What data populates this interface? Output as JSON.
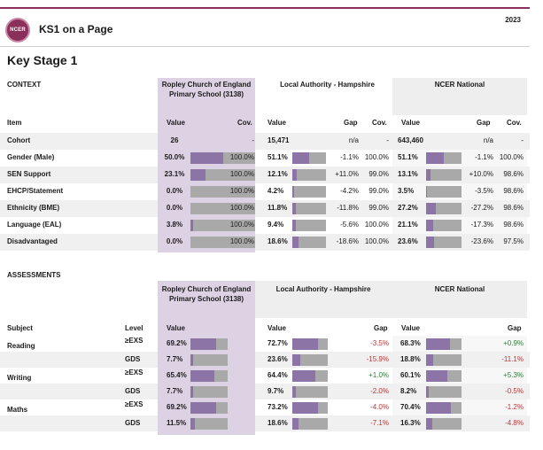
{
  "header": {
    "logo_text": "NCER",
    "title": "KS1 on a Page",
    "year": "2023"
  },
  "page_title": "Key Stage 1",
  "colors": {
    "accent": "#8b2f5b",
    "school_band": "#ddd2e3",
    "bar_fill": "#8c74a6",
    "bar_track": "#a9a9a9"
  },
  "context": {
    "section_label": "CONTEXT",
    "school_name": "Ropley Church of England Primary School (3138)",
    "la_name": "Local Authority - Hampshire",
    "national_name": "NCER National",
    "headers": {
      "item": "Item",
      "value": "Value",
      "cov": "Cov.",
      "gap": "Gap"
    },
    "rows": [
      {
        "item": "Cohort",
        "s_val": "26",
        "s_cov": "-",
        "la_val": "15,471",
        "la_gap": "n/a",
        "la_cov": "-",
        "n_val": "643,460",
        "n_gap": "n/a",
        "n_cov": "-",
        "s_pct": null,
        "la_pct": null,
        "n_pct": null
      },
      {
        "item": "Gender (Male)",
        "s_val": "50.0%",
        "s_cov": "100.0%",
        "la_val": "51.1%",
        "la_gap": "-1.1%",
        "la_cov": "100.0%",
        "n_val": "51.1%",
        "n_gap": "-1.1%",
        "n_cov": "100.0%",
        "s_pct": 50.0,
        "la_pct": 51.1,
        "n_pct": 51.1
      },
      {
        "item": "SEN Support",
        "s_val": "23.1%",
        "s_cov": "100.0%",
        "la_val": "12.1%",
        "la_gap": "+11.0%",
        "la_cov": "99.0%",
        "n_val": "13.1%",
        "n_gap": "+10.0%",
        "n_cov": "98.6%",
        "s_pct": 23.1,
        "la_pct": 12.1,
        "n_pct": 13.1
      },
      {
        "item": "EHCP/Statement",
        "s_val": "0.0%",
        "s_cov": "100.0%",
        "la_val": "4.2%",
        "la_gap": "-4.2%",
        "la_cov": "99.0%",
        "n_val": "3.5%",
        "n_gap": "-3.5%",
        "n_cov": "98.6%",
        "s_pct": 0.0,
        "la_pct": 4.2,
        "n_pct": 3.5
      },
      {
        "item": "Ethnicity (BME)",
        "s_val": "0.0%",
        "s_cov": "100.0%",
        "la_val": "11.8%",
        "la_gap": "-11.8%",
        "la_cov": "99.0%",
        "n_val": "27.2%",
        "n_gap": "-27.2%",
        "n_cov": "98.6%",
        "s_pct": 0.0,
        "la_pct": 11.8,
        "n_pct": 27.2
      },
      {
        "item": "Language (EAL)",
        "s_val": "3.8%",
        "s_cov": "100.0%",
        "la_val": "9.4%",
        "la_gap": "-5.6%",
        "la_cov": "100.0%",
        "n_val": "21.1%",
        "n_gap": "-17.3%",
        "n_cov": "98.6%",
        "s_pct": 3.8,
        "la_pct": 9.4,
        "n_pct": 21.1
      },
      {
        "item": "Disadvantaged",
        "s_val": "0.0%",
        "s_cov": "100.0%",
        "la_val": "18.6%",
        "la_gap": "-18.6%",
        "la_cov": "100.0%",
        "n_val": "23.6%",
        "n_gap": "-23.6%",
        "n_cov": "97.5%",
        "s_pct": 0.0,
        "la_pct": 18.6,
        "n_pct": 23.6
      }
    ]
  },
  "assessments": {
    "section_label": "ASSESSMENTS",
    "school_name": "Ropley Church of England Primary School (3138)",
    "la_name": "Local Authority - Hampshire",
    "national_name": "NCER National",
    "headers": {
      "subject": "Subject",
      "level": "Level",
      "value": "Value",
      "gap": "Gap"
    },
    "rows": [
      {
        "subject": "Reading",
        "level": "≥EXS",
        "s_val": "69.2%",
        "la_val": "72.7%",
        "la_gap": "-3.5%",
        "n_val": "68.3%",
        "n_gap": "+0.9%",
        "s_pct": 69.2,
        "la_pct": 72.7,
        "n_pct": 68.3
      },
      {
        "subject": "",
        "level": "GDS",
        "s_val": "7.7%",
        "la_val": "23.6%",
        "la_gap": "-15.9%",
        "n_val": "18.8%",
        "n_gap": "-11.1%",
        "s_pct": 7.7,
        "la_pct": 23.6,
        "n_pct": 18.8
      },
      {
        "subject": "Writing",
        "level": "≥EXS",
        "s_val": "65.4%",
        "la_val": "64.4%",
        "la_gap": "+1.0%",
        "n_val": "60.1%",
        "n_gap": "+5.3%",
        "s_pct": 65.4,
        "la_pct": 64.4,
        "n_pct": 60.1
      },
      {
        "subject": "",
        "level": "GDS",
        "s_val": "7.7%",
        "la_val": "9.7%",
        "la_gap": "-2.0%",
        "n_val": "8.2%",
        "n_gap": "-0.5%",
        "s_pct": 7.7,
        "la_pct": 9.7,
        "n_pct": 8.2
      },
      {
        "subject": "Maths",
        "level": "≥EXS",
        "s_val": "69.2%",
        "la_val": "73.2%",
        "la_gap": "-4.0%",
        "n_val": "70.4%",
        "n_gap": "-1.2%",
        "s_pct": 69.2,
        "la_pct": 73.2,
        "n_pct": 70.4
      },
      {
        "subject": "",
        "level": "GDS",
        "s_val": "11.5%",
        "la_val": "18.6%",
        "la_gap": "-7.1%",
        "n_val": "16.3%",
        "n_gap": "-4.8%",
        "s_pct": 11.5,
        "la_pct": 18.6,
        "n_pct": 16.3
      }
    ]
  }
}
